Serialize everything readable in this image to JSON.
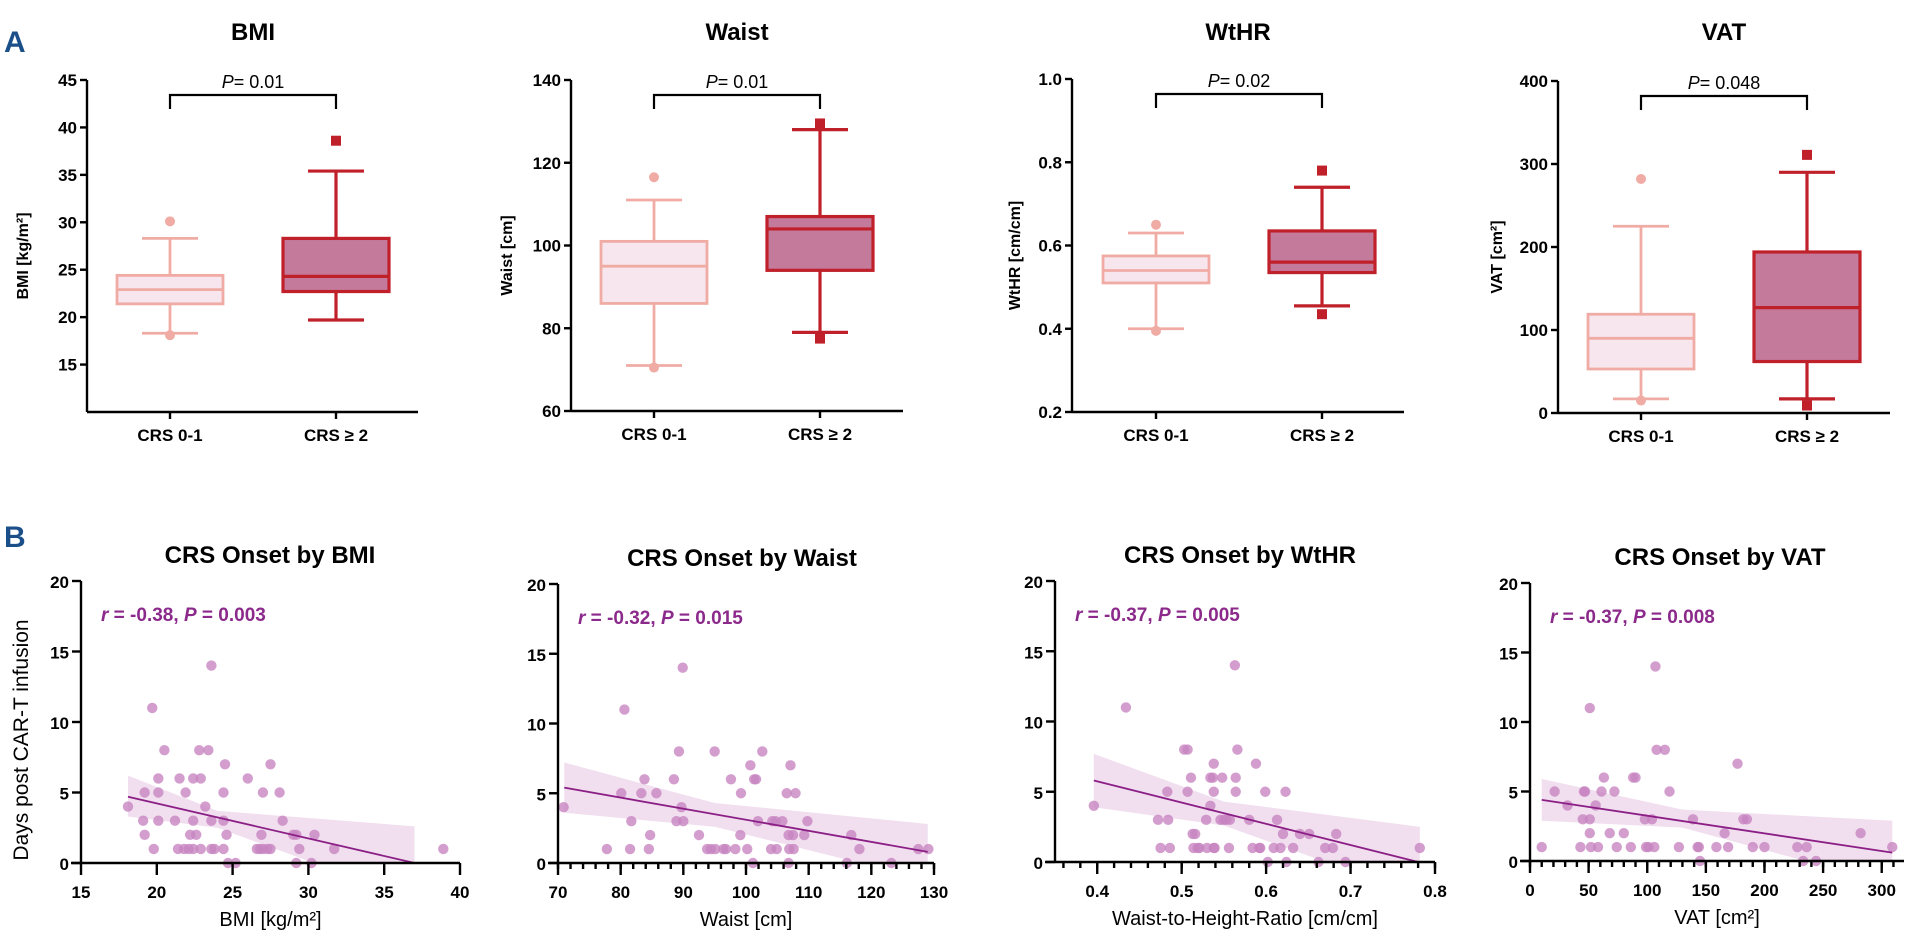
{
  "panel_labels": {
    "a": "A",
    "b": "B"
  },
  "colors": {
    "panel_letter": "#1a4f8a",
    "low_stroke": "#f0aca4",
    "low_fill": "#f7e6ee",
    "high_stroke": "#c0202a",
    "high_fill": "#c47a9a",
    "scatter_point": "#c683c0",
    "regression_line": "#8b1f86",
    "ci_band": "#ecd3ea",
    "stat_text": "#8b2a8b"
  },
  "chart_data": [
    {
      "type": "box",
      "id": "box-bmi",
      "title": "BMI",
      "ylabel": "BMI [kg/m²]",
      "ylim": [
        10,
        45
      ],
      "yticks": [
        15,
        20,
        25,
        30,
        35,
        40,
        45
      ],
      "categories": [
        "CRS 0-1",
        "CRS ≥ 2"
      ],
      "significance": {
        "label_italic": "P",
        "label_rest": "= 0.01"
      },
      "groups": [
        {
          "name": "CRS 0-1",
          "whisker_low": 18.3,
          "q1": 21.4,
          "median": 22.9,
          "q3": 24.4,
          "whisker_high": 28.3,
          "outliers": [
            30.1,
            18.1
          ]
        },
        {
          "name": "CRS ≥ 2",
          "whisker_low": 19.7,
          "q1": 22.7,
          "median": 24.3,
          "q3": 28.3,
          "whisker_high": 35.4,
          "outliers": [
            38.6
          ]
        }
      ]
    },
    {
      "type": "box",
      "id": "box-waist",
      "title": "Waist",
      "ylabel": "Waist [cm]",
      "ylim": [
        60,
        140
      ],
      "yticks": [
        60,
        80,
        100,
        120,
        140
      ],
      "categories": [
        "CRS 0-1",
        "CRS ≥ 2"
      ],
      "significance": {
        "label_italic": "P",
        "label_rest": "= 0.01"
      },
      "groups": [
        {
          "name": "CRS 0-1",
          "whisker_low": 71,
          "q1": 86,
          "median": 95,
          "q3": 101,
          "whisker_high": 111,
          "outliers": [
            116.5,
            70.5
          ]
        },
        {
          "name": "CRS ≥ 2",
          "whisker_low": 79,
          "q1": 94,
          "median": 104,
          "q3": 107,
          "whisker_high": 128,
          "outliers": [
            129.5,
            77.5
          ]
        }
      ]
    },
    {
      "type": "box",
      "id": "box-wthr",
      "title": "WtHR",
      "ylabel": "WtHR [cm/cm]",
      "ylim": [
        0.2,
        1.0
      ],
      "yticks": [
        0.2,
        0.4,
        0.6,
        0.8,
        1.0
      ],
      "ytick_labels": [
        "0.2",
        "0.4",
        "0.6",
        "0.8",
        "1.0"
      ],
      "categories": [
        "CRS 0-1",
        "CRS ≥ 2"
      ],
      "significance": {
        "label_italic": "P",
        "label_rest": "= 0.02"
      },
      "groups": [
        {
          "name": "CRS 0-1",
          "whisker_low": 0.4,
          "q1": 0.51,
          "median": 0.54,
          "q3": 0.575,
          "whisker_high": 0.63,
          "outliers": [
            0.65,
            0.395
          ]
        },
        {
          "name": "CRS ≥ 2",
          "whisker_low": 0.455,
          "q1": 0.535,
          "median": 0.56,
          "q3": 0.635,
          "whisker_high": 0.74,
          "outliers": [
            0.78,
            0.435
          ]
        }
      ]
    },
    {
      "type": "box",
      "id": "box-vat",
      "title": "VAT",
      "ylabel": "VAT [cm²]",
      "ylim": [
        0,
        400
      ],
      "yticks": [
        0,
        100,
        200,
        300,
        400
      ],
      "categories": [
        "CRS 0-1",
        "CRS ≥ 2"
      ],
      "significance": {
        "label_italic": "P",
        "label_rest": "= 0.048"
      },
      "groups": [
        {
          "name": "CRS 0-1",
          "whisker_low": 17,
          "q1": 53,
          "median": 90,
          "q3": 119,
          "whisker_high": 225,
          "outliers": [
            282,
            15
          ]
        },
        {
          "name": "CRS ≥ 2",
          "whisker_low": 17,
          "q1": 62,
          "median": 127,
          "q3": 194,
          "whisker_high": 290,
          "outliers": [
            311,
            9
          ]
        }
      ]
    },
    {
      "type": "scatter",
      "id": "scatter-bmi",
      "title": "CRS Onset by BMI",
      "xlabel": "BMI [kg/m²]",
      "ylabel": "Days post  CAR-T infusion",
      "xlim": [
        15,
        40
      ],
      "ylim": [
        0,
        20
      ],
      "xticks": [
        15,
        20,
        25,
        30,
        35,
        40
      ],
      "yticks": [
        0,
        5,
        10,
        15,
        20
      ],
      "stat": {
        "r_italic": "r",
        "r_rest": " = -0.38, ",
        "p_italic": "P",
        "p_rest": " = 0.003"
      },
      "regression": {
        "x": [
          18.1,
          37.0
        ],
        "y": [
          4.7,
          0.0
        ]
      },
      "ci_band": {
        "x": [
          18.1,
          24,
          37.0
        ],
        "upper": [
          6.2,
          3.7,
          2.6
        ],
        "lower": [
          3.3,
          2.5,
          -2.6
        ]
      },
      "points": [
        [
          18.1,
          4
        ],
        [
          19.1,
          3
        ],
        [
          19.2,
          2
        ],
        [
          19.2,
          5
        ],
        [
          19.7,
          11
        ],
        [
          19.8,
          1
        ],
        [
          20.1,
          6
        ],
        [
          20.1,
          5
        ],
        [
          20.1,
          3
        ],
        [
          20.5,
          8
        ],
        [
          21.2,
          3
        ],
        [
          21.4,
          1
        ],
        [
          21.5,
          6
        ],
        [
          21.9,
          5
        ],
        [
          21.8,
          1
        ],
        [
          22.1,
          1
        ],
        [
          22.2,
          2
        ],
        [
          22.4,
          6
        ],
        [
          22.4,
          3
        ],
        [
          22.4,
          1
        ],
        [
          22.6,
          2
        ],
        [
          22.8,
          8
        ],
        [
          22.9,
          6
        ],
        [
          22.9,
          1
        ],
        [
          23.2,
          4
        ],
        [
          23.4,
          8
        ],
        [
          23.6,
          14
        ],
        [
          23.6,
          3
        ],
        [
          23.6,
          1
        ],
        [
          23.8,
          1
        ],
        [
          24.4,
          5
        ],
        [
          24.5,
          7
        ],
        [
          24.4,
          3
        ],
        [
          24.4,
          1
        ],
        [
          24.6,
          2
        ],
        [
          24.7,
          0
        ],
        [
          25.2,
          0
        ],
        [
          26.0,
          6
        ],
        [
          26.6,
          1
        ],
        [
          26.8,
          1
        ],
        [
          26.9,
          2
        ],
        [
          27.0,
          5
        ],
        [
          27.0,
          1
        ],
        [
          27.3,
          1
        ],
        [
          27.5,
          7
        ],
        [
          27.5,
          1
        ],
        [
          28.1,
          5
        ],
        [
          28.3,
          3
        ],
        [
          29.0,
          2
        ],
        [
          29.2,
          2
        ],
        [
          29.2,
          0
        ],
        [
          29.4,
          1
        ],
        [
          30.2,
          0
        ],
        [
          30.4,
          2
        ],
        [
          31.7,
          1
        ],
        [
          38.9,
          1
        ]
      ]
    },
    {
      "type": "scatter",
      "id": "scatter-waist",
      "title": "CRS Onset by Waist",
      "xlabel": "Waist [cm]",
      "ylabel": "",
      "xlim": [
        70,
        130
      ],
      "ylim": [
        0,
        20
      ],
      "xticks": [
        70,
        80,
        90,
        100,
        110,
        120,
        130
      ],
      "minor_x_step": 2,
      "yticks": [
        0,
        5,
        10,
        15,
        20
      ],
      "stat": {
        "r_italic": "r",
        "r_rest": " = -0.32, ",
        "p_italic": "P",
        "p_rest": " = 0.015"
      },
      "regression": {
        "x": [
          71,
          129
        ],
        "y": [
          5.4,
          0.8
        ]
      },
      "ci_band": {
        "x": [
          71,
          95,
          129
        ],
        "upper": [
          7.2,
          4.3,
          2.8
        ],
        "lower": [
          3.6,
          2.6,
          -1.2
        ]
      },
      "points": [
        [
          70.9,
          4
        ],
        [
          77.8,
          1
        ],
        [
          80.1,
          5
        ],
        [
          80.6,
          11
        ],
        [
          81.5,
          1
        ],
        [
          81.7,
          3
        ],
        [
          83.3,
          5
        ],
        [
          83.8,
          6
        ],
        [
          84.5,
          1
        ],
        [
          84.7,
          2
        ],
        [
          85.7,
          5
        ],
        [
          88.5,
          6
        ],
        [
          88.9,
          3
        ],
        [
          89.3,
          8
        ],
        [
          89.7,
          4
        ],
        [
          89.9,
          14
        ],
        [
          90.0,
          3
        ],
        [
          92.5,
          2
        ],
        [
          93.8,
          1
        ],
        [
          94.4,
          1
        ],
        [
          95.0,
          8
        ],
        [
          95.1,
          1
        ],
        [
          96.4,
          1
        ],
        [
          96.8,
          1
        ],
        [
          97.6,
          6
        ],
        [
          98.3,
          1
        ],
        [
          99.1,
          2
        ],
        [
          99.2,
          5
        ],
        [
          100.2,
          1
        ],
        [
          100.7,
          7
        ],
        [
          101.1,
          0
        ],
        [
          101.3,
          6
        ],
        [
          101.6,
          6
        ],
        [
          101.9,
          3
        ],
        [
          102.6,
          8
        ],
        [
          104.0,
          1
        ],
        [
          104.2,
          3
        ],
        [
          104.7,
          3
        ],
        [
          104.9,
          1
        ],
        [
          105.8,
          3
        ],
        [
          106.5,
          5
        ],
        [
          106.8,
          2
        ],
        [
          106.8,
          0
        ],
        [
          106.9,
          1
        ],
        [
          107.1,
          7
        ],
        [
          107.5,
          2
        ],
        [
          107.6,
          1
        ],
        [
          107.9,
          5
        ],
        [
          109.3,
          2
        ],
        [
          109.8,
          3
        ],
        [
          116.1,
          0
        ],
        [
          116.8,
          2
        ],
        [
          118.1,
          1
        ],
        [
          123.2,
          0
        ],
        [
          127.5,
          1
        ],
        [
          129.1,
          1
        ]
      ]
    },
    {
      "type": "scatter",
      "id": "scatter-wthr",
      "title": "CRS Onset by WtHR",
      "xlabel": "Waist-to-Height-Ratio [cm/cm]",
      "ylabel": "",
      "xlim": [
        0.35,
        0.8
      ],
      "ylim": [
        0,
        20
      ],
      "xticks": [
        0.4,
        0.5,
        0.6,
        0.7,
        0.8
      ],
      "xtick_labels": [
        "0.4",
        "0.5",
        "0.6",
        "0.7",
        "0.8"
      ],
      "minor_x_step": 0.02,
      "yticks": [
        0,
        5,
        10,
        15,
        20
      ],
      "stat": {
        "r_italic": "r",
        "r_rest": " = -0.37, ",
        "p_italic": "P",
        "p_rest": " = 0.005"
      },
      "regression": {
        "x": [
          0.396,
          0.78
        ],
        "y": [
          5.8,
          0.0
        ]
      },
      "ci_band": {
        "x": [
          0.396,
          0.55,
          0.782
        ],
        "upper": [
          7.7,
          4.3,
          2.5
        ],
        "lower": [
          3.9,
          2.6,
          -2.4
        ]
      },
      "points": [
        [
          0.396,
          4
        ],
        [
          0.434,
          11
        ],
        [
          0.472,
          3
        ],
        [
          0.475,
          1
        ],
        [
          0.483,
          5
        ],
        [
          0.484,
          3
        ],
        [
          0.486,
          1
        ],
        [
          0.503,
          8
        ],
        [
          0.507,
          8
        ],
        [
          0.507,
          5
        ],
        [
          0.511,
          6
        ],
        [
          0.513,
          2
        ],
        [
          0.514,
          1
        ],
        [
          0.516,
          2
        ],
        [
          0.519,
          1
        ],
        [
          0.521,
          1
        ],
        [
          0.529,
          3
        ],
        [
          0.53,
          1
        ],
        [
          0.534,
          4
        ],
        [
          0.534,
          6
        ],
        [
          0.537,
          6
        ],
        [
          0.538,
          7
        ],
        [
          0.538,
          5
        ],
        [
          0.538,
          1
        ],
        [
          0.539,
          1
        ],
        [
          0.546,
          3
        ],
        [
          0.548,
          6
        ],
        [
          0.55,
          3
        ],
        [
          0.553,
          3
        ],
        [
          0.556,
          1
        ],
        [
          0.557,
          3
        ],
        [
          0.563,
          14
        ],
        [
          0.564,
          6
        ],
        [
          0.564,
          5
        ],
        [
          0.566,
          8
        ],
        [
          0.58,
          3
        ],
        [
          0.584,
          1
        ],
        [
          0.588,
          7
        ],
        [
          0.592,
          1
        ],
        [
          0.593,
          1
        ],
        [
          0.599,
          5
        ],
        [
          0.602,
          0
        ],
        [
          0.609,
          1
        ],
        [
          0.613,
          3
        ],
        [
          0.617,
          1
        ],
        [
          0.62,
          2
        ],
        [
          0.623,
          5
        ],
        [
          0.624,
          0
        ],
        [
          0.632,
          1
        ],
        [
          0.64,
          2
        ],
        [
          0.651,
          2
        ],
        [
          0.662,
          0
        ],
        [
          0.67,
          1
        ],
        [
          0.679,
          1
        ],
        [
          0.683,
          2
        ],
        [
          0.694,
          0
        ],
        [
          0.782,
          1
        ]
      ]
    },
    {
      "type": "scatter",
      "id": "scatter-vat",
      "title": "CRS Onset by VAT",
      "xlabel": "VAT [cm²]",
      "ylabel": "",
      "xlim": [
        0,
        319
      ],
      "ylim": [
        0,
        20
      ],
      "xticks": [
        0,
        50,
        100,
        150,
        200,
        250,
        300
      ],
      "minor_x_step": 10,
      "yticks": [
        0,
        5,
        10,
        15,
        20
      ],
      "stat": {
        "r_italic": "r",
        "r_rest": " = -0.37, ",
        "p_italic": "P",
        "p_rest": " = 0.008"
      },
      "regression": {
        "x": [
          10,
          309
        ],
        "y": [
          4.4,
          0.6
        ]
      },
      "ci_band": {
        "x": [
          10,
          130,
          309
        ],
        "upper": [
          5.9,
          3.7,
          2.9
        ],
        "lower": [
          2.9,
          2.4,
          -1.7
        ]
      },
      "points": [
        [
          10,
          1
        ],
        [
          21,
          5
        ],
        [
          32,
          4
        ],
        [
          43,
          1
        ],
        [
          45,
          3
        ],
        [
          46,
          5
        ],
        [
          47,
          5
        ],
        [
          51,
          11
        ],
        [
          51,
          2
        ],
        [
          51,
          3
        ],
        [
          52,
          1
        ],
        [
          56,
          4
        ],
        [
          58,
          1
        ],
        [
          61,
          5
        ],
        [
          63,
          6
        ],
        [
          68,
          2
        ],
        [
          72,
          5
        ],
        [
          74,
          1
        ],
        [
          80,
          2
        ],
        [
          86,
          1
        ],
        [
          88,
          6
        ],
        [
          90,
          6
        ],
        [
          98,
          3
        ],
        [
          99,
          1
        ],
        [
          101,
          1
        ],
        [
          104,
          3
        ],
        [
          106,
          1
        ],
        [
          107,
          14
        ],
        [
          108,
          8
        ],
        [
          115,
          8
        ],
        [
          119,
          5
        ],
        [
          127,
          1
        ],
        [
          139,
          3
        ],
        [
          143,
          1
        ],
        [
          144,
          1
        ],
        [
          145,
          0
        ],
        [
          159,
          1
        ],
        [
          166,
          2
        ],
        [
          169,
          1
        ],
        [
          177,
          7
        ],
        [
          182,
          3
        ],
        [
          185,
          3
        ],
        [
          190,
          1
        ],
        [
          200,
          1
        ],
        [
          228,
          1
        ],
        [
          233,
          0
        ],
        [
          236,
          1
        ],
        [
          244,
          0
        ],
        [
          282,
          2
        ],
        [
          309,
          1
        ]
      ]
    }
  ]
}
